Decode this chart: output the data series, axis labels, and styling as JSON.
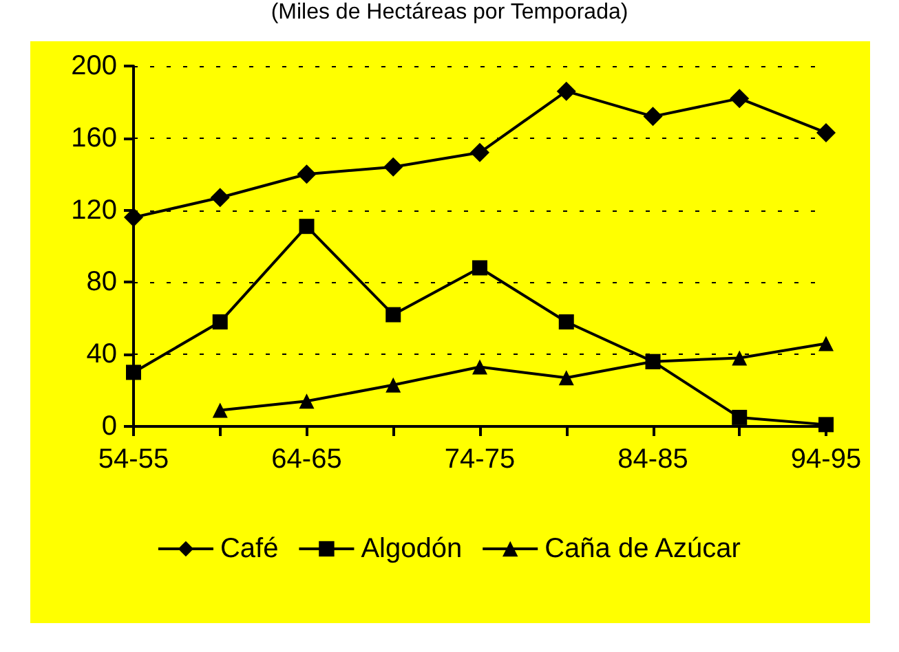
{
  "chart_data": {
    "type": "line",
    "subtitle": "(Miles de Hectáreas por Temporada)",
    "categories": [
      "54-55",
      null,
      "64-65",
      null,
      "74-75",
      null,
      "84-85",
      null,
      "94-95"
    ],
    "series": [
      {
        "name": "Café",
        "color": "#000000",
        "marker": "diamond",
        "values": [
          116,
          127,
          140,
          144,
          152,
          186,
          172,
          182,
          163
        ]
      },
      {
        "name": "Algodón",
        "color": "#000000",
        "marker": "square",
        "values": [
          30,
          58,
          111,
          62,
          88,
          58,
          36,
          5,
          1
        ]
      },
      {
        "name": "Caña de Azúcar",
        "color": "#000000",
        "marker": "triangle",
        "values": [
          null,
          9,
          14,
          23,
          33,
          27,
          36,
          38,
          46
        ]
      }
    ],
    "ylim": [
      0,
      200
    ],
    "yticks": [
      0,
      40,
      80,
      120,
      160,
      200
    ],
    "grid": "y",
    "legend": "bottom",
    "line_style": "solid"
  }
}
